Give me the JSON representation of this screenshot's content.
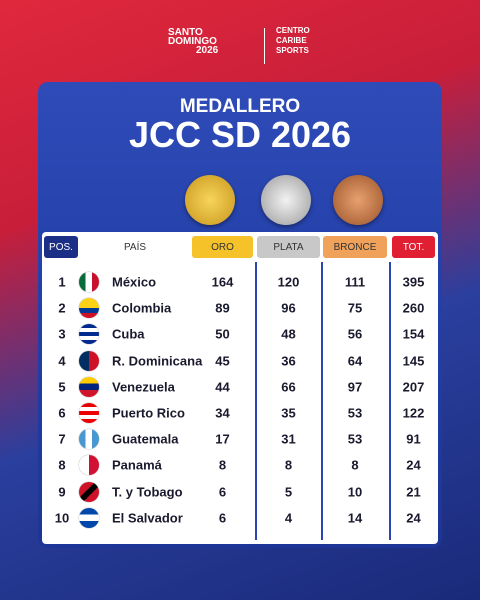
{
  "header": {
    "logo_lines": [
      "SANTO",
      "DOMINGO",
      "2026"
    ],
    "partner_lines": [
      "CENTRO",
      "CARIBE",
      "SPORTS"
    ]
  },
  "title": {
    "kicker": "MEDALLERO",
    "main": "JCC SD 2026"
  },
  "table": {
    "columns": [
      "POS.",
      "PAÍS",
      "ORO",
      "PLATA",
      "BRONCE",
      "TOT."
    ],
    "rows": [
      [
        "1",
        "México",
        "164",
        "120",
        "111",
        "395"
      ],
      [
        "2",
        "Colombia",
        "89",
        "96",
        "75",
        "260"
      ],
      [
        "3",
        "Cuba",
        "50",
        "48",
        "56",
        "154"
      ],
      [
        "4",
        "R. Dominicana",
        "45",
        "36",
        "64",
        "145"
      ],
      [
        "5",
        "Venezuela",
        "44",
        "66",
        "97",
        "207"
      ],
      [
        "6",
        "Puerto Rico",
        "34",
        "35",
        "53",
        "122"
      ],
      [
        "7",
        "Guatemala",
        "17",
        "31",
        "53",
        "91"
      ],
      [
        "8",
        "Panamá",
        "8",
        "8",
        "8",
        "24"
      ],
      [
        "9",
        "T. y Tobago",
        "6",
        "5",
        "10",
        "21"
      ],
      [
        "10",
        "El Salvador",
        "6",
        "4",
        "14",
        "24"
      ]
    ]
  }
}
